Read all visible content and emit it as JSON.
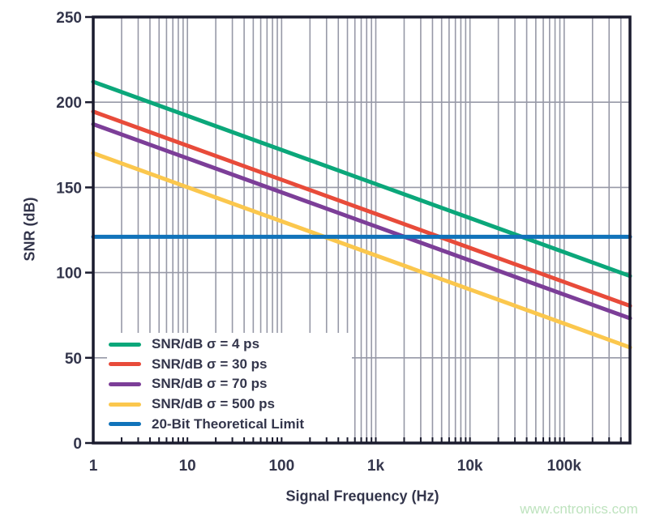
{
  "chart_data": {
    "type": "line",
    "title": "",
    "xlabel": "Signal Frequency (Hz)",
    "ylabel": "SNR (dB)",
    "x_scale": "log",
    "xlim": [
      1,
      500000
    ],
    "ylim": [
      0,
      250
    ],
    "grid": true,
    "legend_position": "lower left",
    "x_ticks": [
      {
        "value": 1,
        "label": "1"
      },
      {
        "value": 10,
        "label": "10"
      },
      {
        "value": 100,
        "label": "100"
      },
      {
        "value": 1000,
        "label": "1k"
      },
      {
        "value": 10000,
        "label": "10k"
      },
      {
        "value": 100000,
        "label": "100k"
      }
    ],
    "y_ticks": [
      {
        "value": 0,
        "label": "0"
      },
      {
        "value": 50,
        "label": "50"
      },
      {
        "value": 100,
        "label": "100"
      },
      {
        "value": 150,
        "label": "150"
      },
      {
        "value": 200,
        "label": "200"
      },
      {
        "value": 250,
        "label": "250"
      }
    ],
    "x": [
      1,
      10,
      100,
      1000,
      10000,
      100000,
      500000
    ],
    "series": [
      {
        "name": "SNR/dB σ = 4 ps",
        "color": "#0BA77A",
        "values": [
          212.0,
          192.0,
          172.0,
          152.0,
          132.0,
          112.0,
          98.0
        ]
      },
      {
        "name": "SNR/dB σ = 30 ps",
        "color": "#E84B3A",
        "values": [
          194.5,
          174.5,
          154.5,
          134.5,
          114.5,
          94.5,
          80.5
        ]
      },
      {
        "name": "SNR/dB σ = 70 ps",
        "color": "#7C3E98",
        "values": [
          187.1,
          167.1,
          147.1,
          127.1,
          107.1,
          87.1,
          73.2
        ]
      },
      {
        "name": "SNR/dB σ = 500 ps",
        "color": "#FBC74D",
        "values": [
          170.1,
          150.1,
          130.1,
          110.1,
          90.1,
          70.1,
          56.1
        ]
      },
      {
        "name": "20-Bit Theoretical Limit",
        "color": "#1173BA",
        "values": [
          121,
          121,
          121,
          121,
          121,
          121,
          121
        ]
      }
    ]
  },
  "style_colors": {
    "axis_border": "#1A1B2E",
    "gridline": "#9799A7",
    "text": "#33354B",
    "watermark_text": "#BEE3BE"
  },
  "watermark": "www.cntronics.com"
}
